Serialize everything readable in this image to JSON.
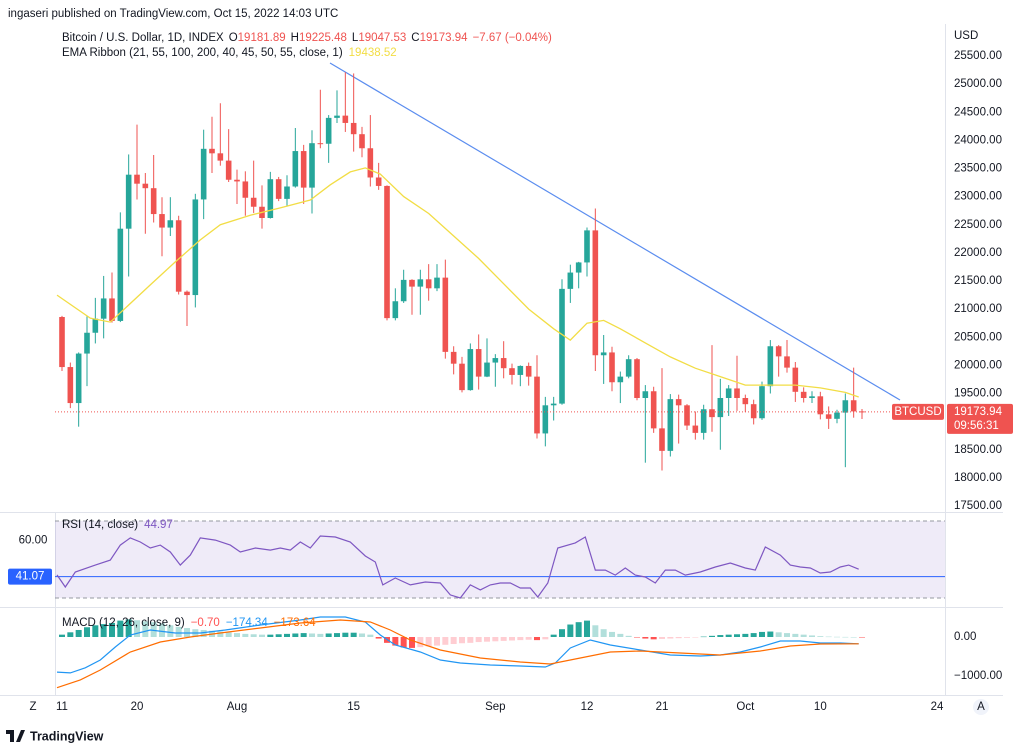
{
  "header": {
    "text": "ingaseri published on TradingView.com, Oct 15, 2022 14:03 UTC"
  },
  "footer": {
    "brand": "TradingView",
    "left_button": "Z",
    "right_button": "A"
  },
  "chart_data": [
    {
      "type": "candlestick",
      "title": "Bitcoin / U.S. Dollar, 1D, INDEX",
      "ohlc_legend": [
        {
          "key": "O",
          "text": "19181.89"
        },
        {
          "key": "H",
          "text": "19225.48"
        },
        {
          "key": "L",
          "text": "19047.53"
        },
        {
          "key": "C",
          "text": "19173.94"
        }
      ],
      "change": "−7.67 (−0.04%)",
      "currency": "USD",
      "open": [
        20860,
        19970,
        19330,
        20210,
        20580,
        20830,
        21190,
        20790,
        22430,
        23390,
        23230,
        23150,
        22690,
        22450,
        22580,
        21310,
        21250,
        22950,
        23850,
        23770,
        23640,
        23300,
        23270,
        22980,
        22820,
        22620,
        23310,
        22960,
        23180,
        23810,
        23160,
        23950,
        23940,
        24400,
        24440,
        24310,
        24110,
        23860,
        23340,
        23190,
        20840,
        21140,
        21520,
        21400,
        21530,
        21370,
        21560,
        20240,
        20030,
        19560,
        20290,
        19800,
        20050,
        20130,
        19950,
        19830,
        19990,
        19800,
        18790,
        19290,
        19320,
        21360,
        21650,
        21830,
        22400,
        20180,
        20230,
        19700,
        19800,
        20110,
        19420,
        19540,
        18880,
        18480,
        19400,
        19290,
        18930,
        18800,
        19220,
        19080,
        19420,
        19590,
        19420,
        19310,
        19060,
        19630,
        20340,
        20160,
        19960,
        19530,
        19420,
        19450,
        19130,
        19050,
        19160,
        19380,
        19181.89
      ],
      "high": [
        20880,
        20050,
        20230,
        20870,
        21200,
        21590,
        21650,
        22720,
        23750,
        24280,
        23420,
        23740,
        22990,
        22990,
        22660,
        21330,
        23050,
        24190,
        24420,
        24660,
        24200,
        23480,
        23450,
        23640,
        23200,
        23440,
        23350,
        23380,
        24220,
        23920,
        24180,
        24900,
        24450,
        24890,
        25210,
        25190,
        24240,
        24450,
        23600,
        23200,
        21370,
        21700,
        21530,
        21700,
        21800,
        21800,
        21880,
        20340,
        20150,
        20390,
        20550,
        20480,
        20200,
        20430,
        20030,
        20000,
        20050,
        20180,
        19440,
        19440,
        21530,
        21790,
        21840,
        22450,
        22790,
        20540,
        20330,
        19890,
        20180,
        20130,
        19650,
        19620,
        19950,
        19490,
        19480,
        19310,
        19180,
        19300,
        20360,
        19760,
        19650,
        20170,
        19480,
        19390,
        19710,
        20450,
        20360,
        20450,
        20060,
        19610,
        19540,
        19530,
        19270,
        19210,
        19500,
        19960,
        19225.48
      ],
      "low": [
        19900,
        19240,
        18910,
        19630,
        20390,
        20480,
        20760,
        20770,
        21580,
        22950,
        22340,
        22540,
        21940,
        22300,
        21260,
        20700,
        21030,
        22600,
        23420,
        23550,
        23260,
        22870,
        22660,
        22710,
        22430,
        22610,
        22920,
        22840,
        23160,
        22870,
        22700,
        23860,
        23600,
        24310,
        24150,
        23800,
        23700,
        23180,
        23120,
        20800,
        20800,
        21110,
        20900,
        20900,
        21150,
        21320,
        20120,
        19840,
        19520,
        19550,
        19570,
        19790,
        19620,
        19770,
        19660,
        19630,
        19640,
        18700,
        18560,
        19020,
        19300,
        21110,
        21370,
        21580,
        19900,
        19670,
        19540,
        19330,
        19770,
        19380,
        18270,
        18800,
        18130,
        18380,
        18610,
        18850,
        18680,
        18680,
        18820,
        18500,
        19100,
        19190,
        19170,
        18950,
        19030,
        19500,
        19800,
        19870,
        19350,
        19340,
        19330,
        19040,
        18870,
        18970,
        18190,
        19070,
        19047.53
      ],
      "close": [
        19970,
        19330,
        20210,
        20580,
        20830,
        21190,
        20790,
        22430,
        23390,
        23230,
        23150,
        22690,
        22450,
        22580,
        21310,
        21250,
        22950,
        23850,
        23770,
        23640,
        23300,
        23270,
        22980,
        22820,
        22620,
        23310,
        22960,
        23180,
        23810,
        23160,
        23950,
        23940,
        24400,
        24440,
        24310,
        24110,
        23860,
        23340,
        23190,
        20840,
        21140,
        21520,
        21400,
        21530,
        21370,
        21560,
        20240,
        20030,
        19560,
        20290,
        19800,
        20050,
        20130,
        19950,
        19830,
        19990,
        19800,
        18790,
        19290,
        19320,
        21360,
        21650,
        21830,
        22400,
        20180,
        20230,
        19700,
        19800,
        20110,
        19420,
        19540,
        18880,
        18480,
        19400,
        19290,
        18930,
        18800,
        19220,
        19080,
        19420,
        19590,
        19420,
        19310,
        19060,
        19630,
        20340,
        20160,
        19960,
        19530,
        19420,
        19450,
        19130,
        19050,
        19160,
        19380,
        19181.89,
        19173.94
      ],
      "up_color": "#26a69a",
      "down_color": "#ef5350",
      "series": [
        {
          "name": "EMA Ribbon (21, 55, 100, 200, 40, 45, 50, 55, close, 1)",
          "color": "#f2dd45",
          "x": [
            -0.6,
            3.4,
            5.8,
            10.6,
            13.6,
            16.6,
            19,
            22.6,
            26.2,
            29.8,
            32.2,
            34.6,
            36.4,
            38.2,
            41,
            44,
            47,
            50,
            53,
            56,
            59,
            61,
            63,
            65,
            67,
            70,
            73,
            76,
            79,
            82,
            85,
            88,
            91,
            94,
            95.6
          ],
          "values": [
            21250,
            20840,
            20770,
            21430,
            21840,
            22230,
            22500,
            22670,
            22800,
            22940,
            23210,
            23440,
            23510,
            23400,
            23000,
            22700,
            22300,
            21900,
            21450,
            21000,
            20650,
            20450,
            20750,
            20800,
            20650,
            20400,
            20150,
            19950,
            19800,
            19650,
            19650,
            19650,
            19600,
            19520,
            19438.52
          ]
        }
      ],
      "last_price": {
        "symbol": "BTCUSD",
        "value": 19173.94,
        "countdown": "09:56:31",
        "color": "#ef5350"
      },
      "xlim": [
        -0.84,
        105.96
      ],
      "xticks": [
        {
          "value": 0,
          "label": "11"
        },
        {
          "value": 9,
          "label": "20"
        },
        {
          "value": 21,
          "label": "Aug"
        },
        {
          "value": 35,
          "label": "15"
        },
        {
          "value": 52,
          "label": "Sep"
        },
        {
          "value": 63,
          "label": "12"
        },
        {
          "value": 72,
          "label": "21"
        },
        {
          "value": 82,
          "label": "Oct"
        },
        {
          "value": 91,
          "label": "10"
        },
        {
          "value": 105,
          "label": "24"
        }
      ],
      "ylim": [
        17393.3,
        25997.8
      ],
      "yticks": [
        {
          "value": 17500,
          "label": "17500.00"
        },
        {
          "value": 18000,
          "label": "18000.00"
        },
        {
          "value": 18500,
          "label": "18500.00"
        },
        {
          "value": 19000,
          "label": "19000.00"
        },
        {
          "value": 19500,
          "label": "19500.00"
        },
        {
          "value": 20000,
          "label": "20000.00"
        },
        {
          "value": 20500,
          "label": "20500.00"
        },
        {
          "value": 21000,
          "label": "21000.00"
        },
        {
          "value": 21500,
          "label": "21500.00"
        },
        {
          "value": 22000,
          "label": "22000.00"
        },
        {
          "value": 22500,
          "label": "22500.00"
        },
        {
          "value": 23000,
          "label": "23000.00"
        },
        {
          "value": 23500,
          "label": "23500.00"
        },
        {
          "value": 24000,
          "label": "24000.00"
        },
        {
          "value": 24500,
          "label": "24500.00"
        },
        {
          "value": 25000,
          "label": "25000.00"
        },
        {
          "value": 25500,
          "label": "25500.00"
        }
      ],
      "grid": false
    },
    {
      "type": "line",
      "title": "RSI (14, close)",
      "series": [
        {
          "color": "#7e57c2",
          "x": [
            -0.6,
            0.4,
            1.6,
            4.0,
            5.8,
            7.0,
            8.2,
            9.4,
            10.6,
            11.8,
            13.0,
            14.2,
            15.4,
            16.6,
            18.4,
            20.2,
            21.4,
            23.2,
            25.0,
            26.2,
            27.4,
            28.6,
            29.8,
            31.0,
            32.8,
            34.6,
            36.4,
            37.6,
            38.5,
            40.0,
            41.8,
            43.6,
            45.4,
            46.6,
            47.8,
            49.0,
            50.2,
            51.4,
            52.6,
            53.8,
            55.0,
            56.2,
            57.1,
            58.3,
            59.5,
            61.6,
            62.8,
            64.0,
            65.2,
            66.4,
            67.6,
            68.8,
            70.0,
            71.2,
            72.4,
            73.6,
            74.8,
            76.6,
            78.4,
            80.2,
            82.0,
            83.2,
            84.4,
            86.2,
            87.4,
            88.6,
            89.8,
            91.0,
            92.2,
            93.4,
            94.4,
            95.6
          ],
          "values": [
            42.0,
            35.7,
            43.5,
            47.1,
            49.7,
            57.5,
            61.2,
            59.1,
            56.0,
            57.5,
            53.9,
            47.1,
            52.3,
            61.2,
            60.1,
            57.5,
            53.9,
            56.0,
            54.9,
            56.0,
            54.9,
            59.1,
            56.0,
            62.2,
            61.7,
            59.1,
            51.8,
            48.7,
            36.8,
            40.4,
            36.8,
            38.3,
            37.8,
            31.6,
            30.0,
            36.8,
            34.2,
            36.8,
            37.8,
            37.8,
            35.2,
            35.2,
            30.5,
            37.8,
            56.0,
            58.6,
            61.7,
            44.5,
            44.5,
            41.9,
            45.6,
            41.9,
            40.9,
            37.8,
            44.5,
            44.5,
            41.9,
            43.5,
            46.1,
            48.2,
            45.6,
            44.5,
            56.5,
            52.3,
            47.1,
            46.1,
            45.6,
            43.0,
            43.5,
            46.1,
            47.1,
            44.97
          ]
        }
      ],
      "band": {
        "range": [
          30,
          70
        ],
        "color": "rgba(126, 87, 194, 0.12)"
      },
      "hline": {
        "value": 41.07,
        "color": "#2962ff"
      },
      "ylim": [
        25.32,
        74.68
      ],
      "yticks": [
        {
          "value": 60,
          "label": "60.00"
        }
      ],
      "grid": false
    },
    {
      "type": "macd",
      "title": "MACD (12, 26, close, 9)",
      "histogram": {
        "values": [
          60,
          120,
          180,
          250,
          300,
          330,
          360,
          420,
          450,
          430,
          400,
          380,
          350,
          300,
          260,
          230,
          200,
          180,
          160,
          140,
          120,
          100,
          80,
          70,
          60,
          60,
          70,
          80,
          90,
          100,
          90,
          80,
          90,
          100,
          110,
          110,
          90,
          60,
          -40,
          -150,
          -220,
          -270,
          -280,
          -260,
          -240,
          -220,
          -200,
          -180,
          -160,
          -150,
          -130,
          -120,
          -110,
          -100,
          -90,
          -80,
          -70,
          -80,
          -60,
          60,
          200,
          320,
          380,
          420,
          300,
          200,
          130,
          80,
          30,
          -10,
          -40,
          -60,
          -50,
          -40,
          -30,
          -20,
          -10,
          10,
          30,
          50,
          60,
          70,
          80,
          100,
          130,
          140,
          120,
          100,
          80,
          60,
          40,
          20,
          10,
          5,
          2,
          0,
          -0.7
        ],
        "colors": [
          "#26a69a",
          "#b2dfdb",
          "#ff5252",
          "#ffcdd2"
        ],
        "legend_label": "−0.70"
      },
      "series": [
        {
          "color": "#2196f3",
          "legend_label": "−174.34",
          "x": [
            -0.6,
            1,
            2.8,
            4.6,
            6.4,
            8.2,
            10.6,
            13.6,
            16.6,
            19.6,
            23.8,
            28.6,
            31,
            34,
            36.4,
            38.2,
            40,
            43,
            45.4,
            47.8,
            51.4,
            55,
            58,
            59.2,
            61,
            63.4,
            65.8,
            69.4,
            73,
            76.6,
            79,
            81.4,
            83.8,
            86.2,
            88.6,
            91,
            93.4,
            95.6
          ],
          "values": [
            -900,
            -920,
            -790,
            -590,
            -256,
            51,
            179,
            103,
            103,
            179,
            308,
            436,
            513,
            513,
            385,
            51,
            -205,
            -385,
            -590,
            -667,
            -718,
            -744,
            -769,
            -667,
            -282,
            -77,
            -205,
            -333,
            -462,
            -487,
            -462,
            -385,
            -256,
            -103,
            -103,
            -154,
            -154,
            -174.34
          ]
        },
        {
          "color": "#ff6d00",
          "legend_label": "−173.64",
          "x": [
            -0.6,
            2.2,
            4.6,
            8.2,
            11.8,
            15.4,
            19.0,
            23.8,
            28.6,
            33.4,
            37.0,
            39.4,
            41.8,
            45.4,
            50.2,
            55.0,
            58.6,
            62.2,
            65.8,
            69.4,
            74.2,
            79.0,
            83.8,
            87.4,
            91.0,
            95.6
          ],
          "values": [
            -1300,
            -1100,
            -846,
            -385,
            -128,
            0,
            103,
            231,
            359,
            436,
            385,
            179,
            -77,
            -333,
            -538,
            -641,
            -692,
            -538,
            -385,
            -359,
            -410,
            -462,
            -359,
            -231,
            -179,
            -173.64
          ]
        }
      ],
      "ylim": [
        -1487,
        769
      ],
      "yticks": [
        {
          "value": 0,
          "label": "0.00"
        },
        {
          "value": -1000,
          "label": "−1000.00"
        }
      ],
      "grid": false
    }
  ]
}
